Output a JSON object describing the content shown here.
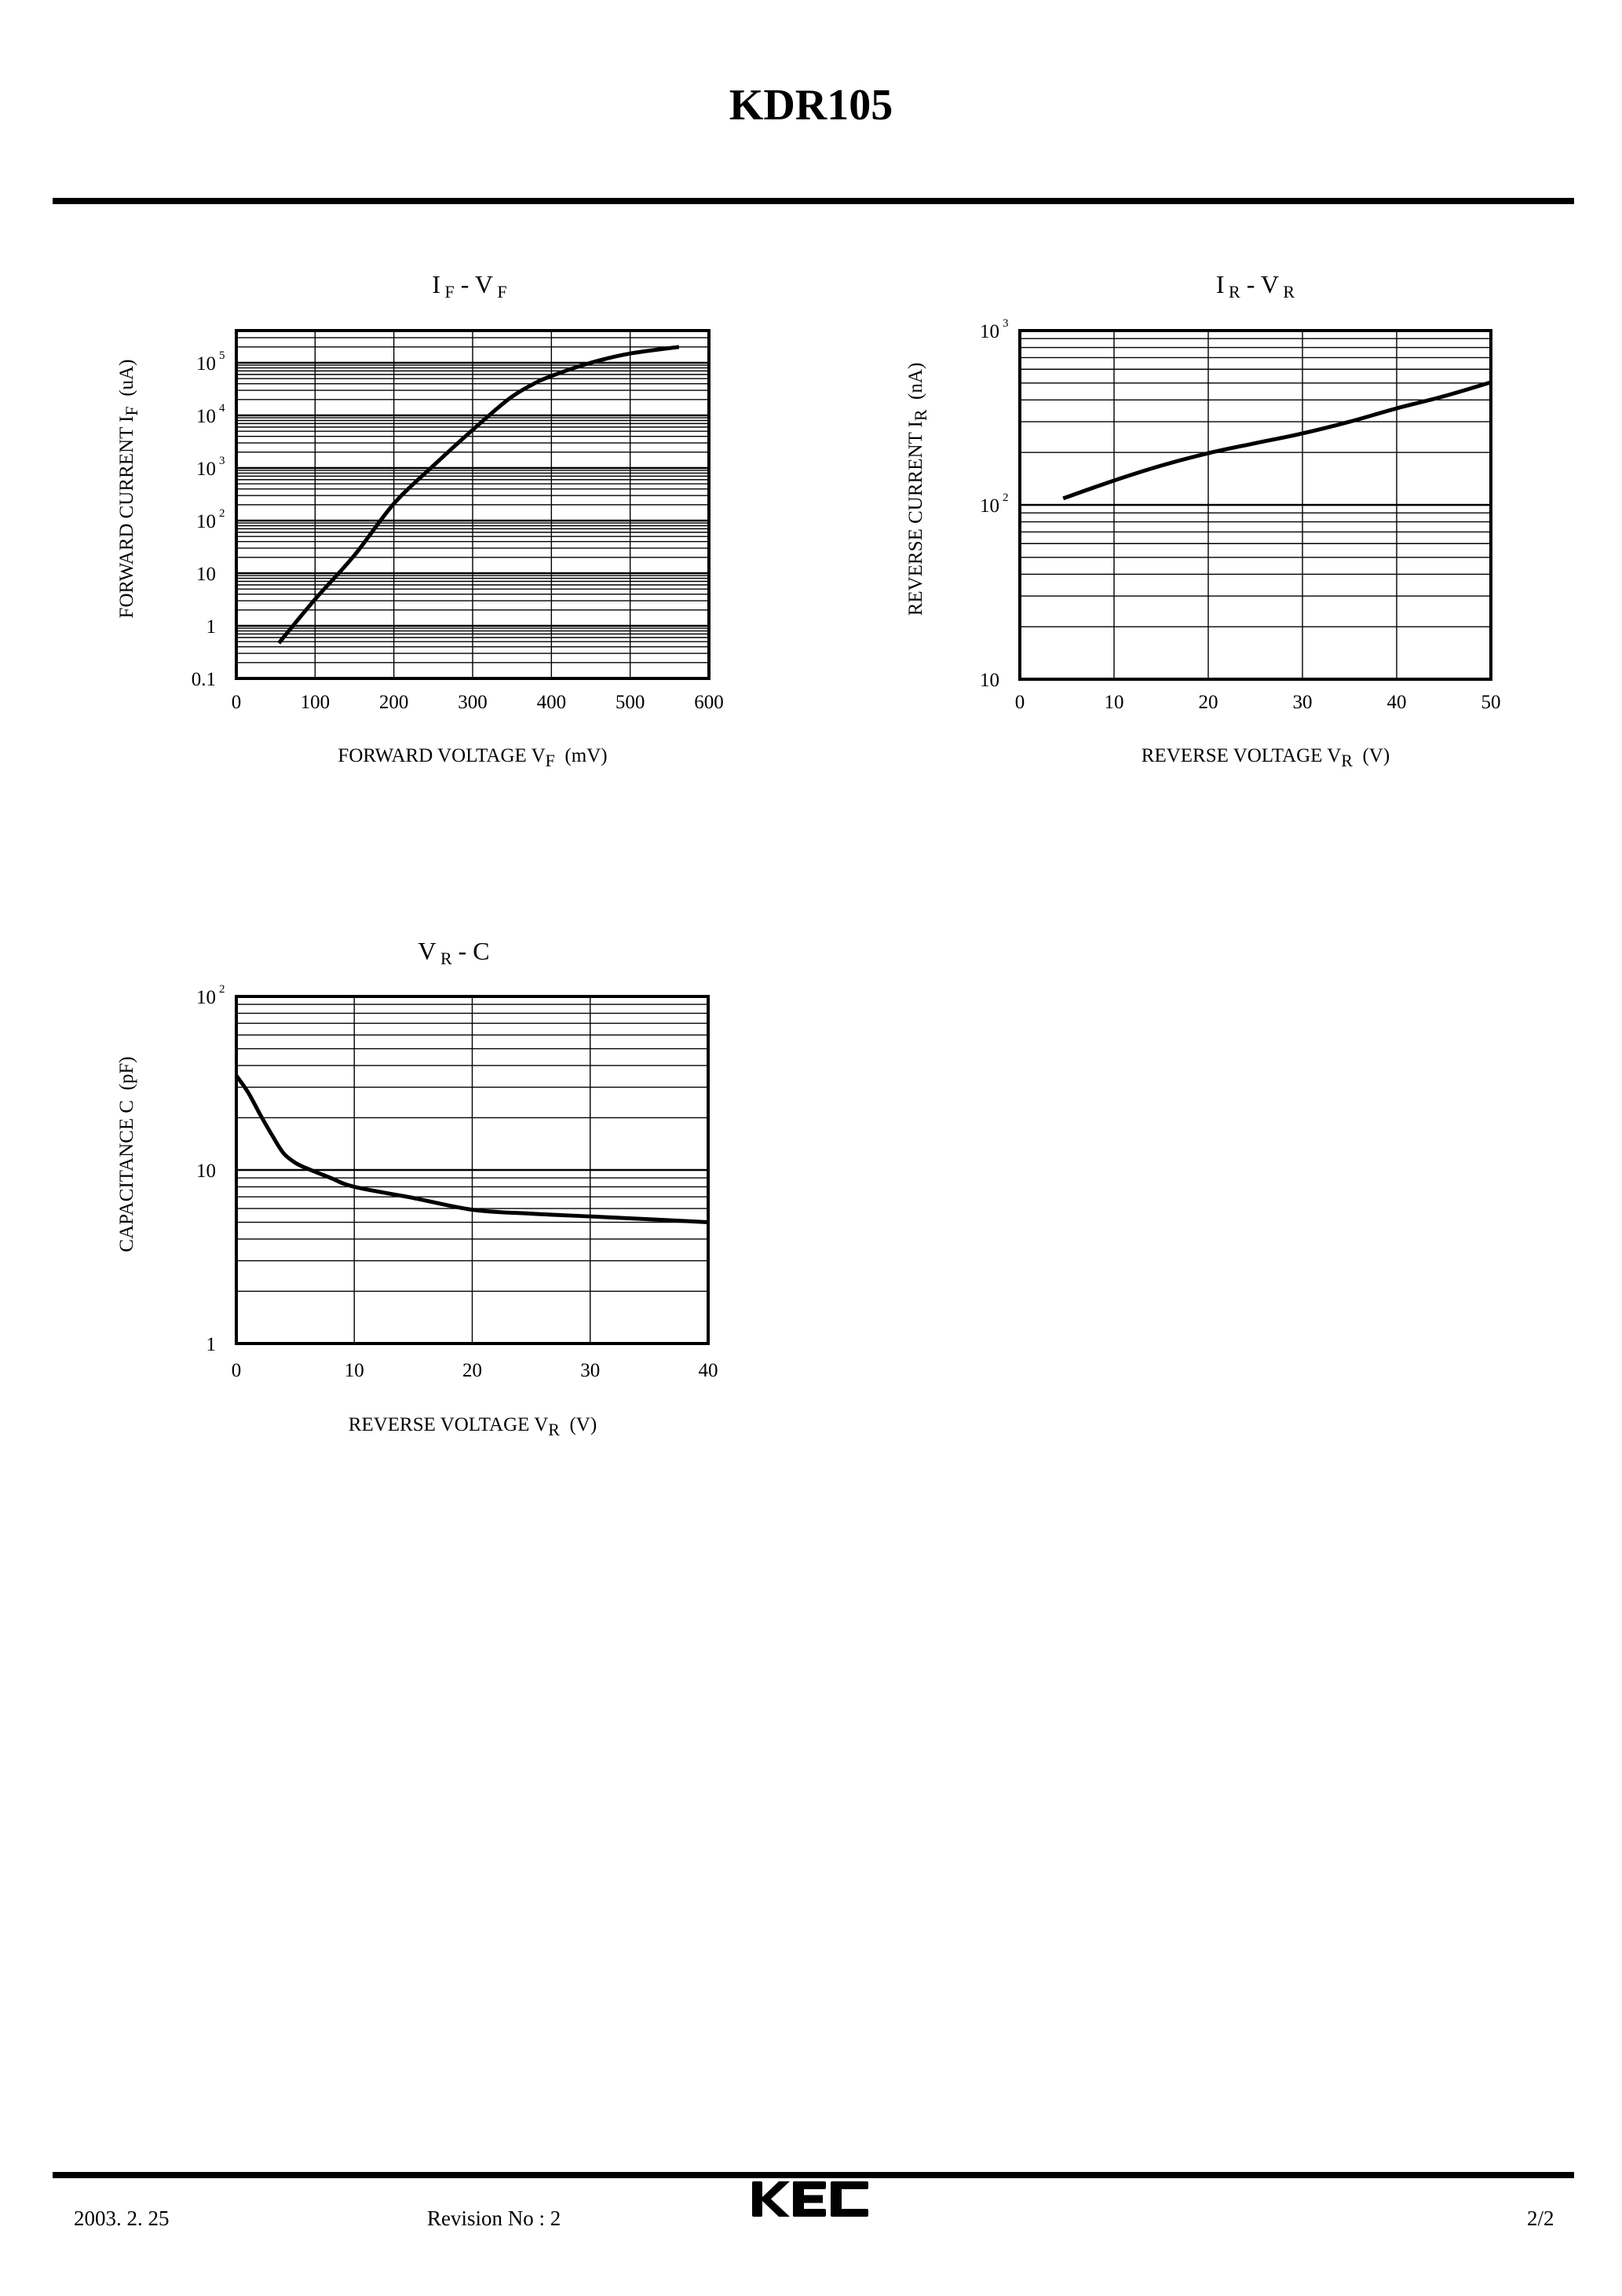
{
  "document": {
    "title": "KDR105",
    "footer": {
      "date": "2003. 2. 25",
      "revision": "Revision No : 2",
      "logo": "KEC",
      "page": "2/2"
    }
  },
  "charts": {
    "if_vf": {
      "title_main_1": "I",
      "title_sub_1": "F",
      "title_dash": "-",
      "title_main_2": "V",
      "title_sub_2": "F",
      "ylabel_main": "FORWARD CURRENT I",
      "ylabel_sub": "F",
      "ylabel_unit": "(uA)",
      "xlabel_main": "FORWARD VOLTAGE V",
      "xlabel_sub": "F",
      "xlabel_unit": "(mV)",
      "xticks": [
        "0",
        "100",
        "200",
        "300",
        "400",
        "500",
        "600"
      ],
      "yticks": [
        {
          "base": "0.1",
          "exp": ""
        },
        {
          "base": "1",
          "exp": ""
        },
        {
          "base": "10",
          "exp": ""
        },
        {
          "base": "10",
          "exp": "2"
        },
        {
          "base": "10",
          "exp": "3"
        },
        {
          "base": "10",
          "exp": "4"
        },
        {
          "base": "10",
          "exp": "5"
        }
      ]
    },
    "ir_vr": {
      "title_main_1": "I",
      "title_sub_1": "R",
      "title_dash": "-",
      "title_main_2": "V",
      "title_sub_2": "R",
      "ylabel_main": "REVERSE CURRENT I",
      "ylabel_sub": "R",
      "ylabel_unit": "(nA)",
      "xlabel_main": "REVERSE VOLTAGE V",
      "xlabel_sub": "R",
      "xlabel_unit": "(V)",
      "xticks": [
        "0",
        "10",
        "20",
        "30",
        "40",
        "50"
      ],
      "yticks": [
        {
          "base": "10",
          "exp": ""
        },
        {
          "base": "10",
          "exp": "2"
        },
        {
          "base": "10",
          "exp": "3"
        }
      ]
    },
    "vr_c": {
      "title_main_1": "V",
      "title_sub_1": "R",
      "title_dash": "-",
      "title_main_2": "C",
      "title_sub_2": "",
      "ylabel_main": "CAPACITANCE C",
      "ylabel_sub": "",
      "ylabel_unit": "(pF)",
      "xlabel_main": "REVERSE VOLTAGE V",
      "xlabel_sub": "R",
      "xlabel_unit": "(V)",
      "xticks": [
        "0",
        "10",
        "20",
        "30",
        "40"
      ],
      "yticks": [
        {
          "base": "1",
          "exp": ""
        },
        {
          "base": "10",
          "exp": ""
        },
        {
          "base": "10",
          "exp": "2"
        }
      ]
    }
  },
  "chart_data": [
    {
      "type": "line",
      "title": "IF - VF",
      "xlabel": "FORWARD VOLTAGE VF (mV)",
      "ylabel": "FORWARD CURRENT IF (uA)",
      "xscale": "linear",
      "yscale": "log",
      "xlim": [
        0,
        600
      ],
      "ylim": [
        0.1,
        300000
      ],
      "grid": true,
      "series": [
        {
          "name": "IF",
          "x": [
            54,
            100,
            150,
            200,
            250,
            300,
            345,
            375,
            400,
            450,
            500,
            562
          ],
          "y": [
            0.47,
            3.2,
            22,
            210,
            1100,
            5300,
            20000,
            38000,
            56000,
            100000,
            150000,
            200000
          ]
        }
      ]
    },
    {
      "type": "line",
      "title": "IR - VR",
      "xlabel": "REVERSE VOLTAGE VR (V)",
      "ylabel": "REVERSE CURRENT IR (nA)",
      "xscale": "linear",
      "yscale": "log",
      "xlim": [
        0,
        50
      ],
      "ylim": [
        10,
        1000
      ],
      "grid": true,
      "series": [
        {
          "name": "IR",
          "x": [
            4.6,
            10,
            15,
            20,
            25,
            30,
            35,
            40,
            45,
            50
          ],
          "y": [
            109,
            138,
            168,
            198,
            226,
            257,
            300,
            358,
            420,
            505
          ]
        }
      ]
    },
    {
      "type": "line",
      "title": "VR - C",
      "xlabel": "REVERSE VOLTAGE VR (V)",
      "ylabel": "CAPACITANCE C (pF)",
      "xscale": "linear",
      "yscale": "log",
      "xlim": [
        0,
        40
      ],
      "ylim": [
        1,
        100
      ],
      "grid": true,
      "series": [
        {
          "name": "C",
          "x": [
            0,
            1,
            2,
            3,
            4,
            5,
            6,
            8,
            10,
            15,
            20,
            25,
            30,
            35,
            40
          ],
          "y": [
            35,
            28,
            21,
            16,
            12.5,
            11.0,
            10.2,
            9.0,
            8.0,
            6.9,
            5.9,
            5.6,
            5.4,
            5.2,
            5.0
          ]
        }
      ]
    }
  ]
}
